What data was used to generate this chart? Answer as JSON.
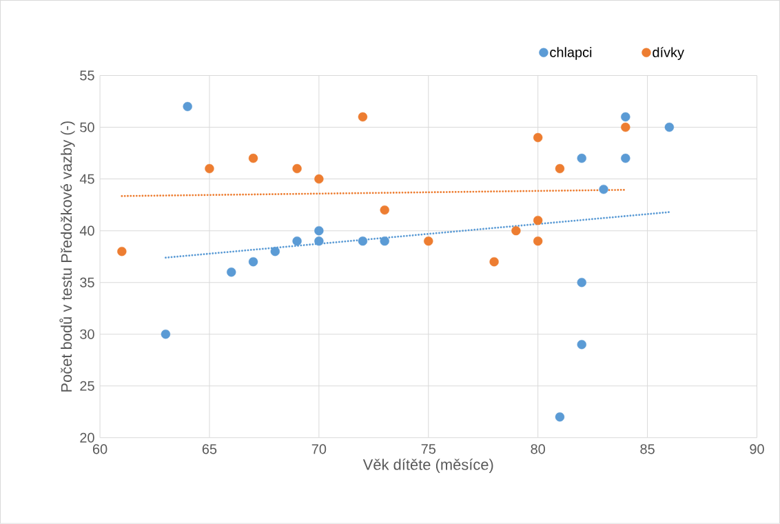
{
  "chart_data": {
    "type": "scatter",
    "xlabel": "Věk dítěte (měsíce)",
    "ylabel": "Počet bodů v testu Předožkové vazby (-)",
    "xlim": [
      60,
      90
    ],
    "xticks": [
      60,
      65,
      70,
      75,
      80,
      85,
      90
    ],
    "ylim": [
      20,
      55
    ],
    "yticks": [
      20,
      25,
      30,
      35,
      40,
      45,
      50,
      55
    ],
    "grid": true,
    "legend": "top right",
    "marker": "circle",
    "series": [
      {
        "name": "chlapci",
        "color": "#5b9bd5",
        "x": [
          64,
          63,
          66,
          67,
          68,
          69,
          70,
          70,
          72,
          73,
          81,
          82,
          82,
          82,
          83,
          84,
          84,
          86
        ],
        "values": [
          52,
          30,
          36,
          37,
          38,
          39,
          40,
          39,
          39,
          39,
          22,
          29,
          35,
          47,
          44,
          51,
          47,
          50
        ]
      },
      {
        "name": "dívky",
        "color": "#ed7d31",
        "x": [
          61,
          65,
          67,
          69,
          70,
          72,
          73,
          75,
          78,
          79,
          80,
          80,
          80,
          81,
          84
        ],
        "values": [
          38,
          46,
          47,
          46,
          45,
          51,
          42,
          39,
          37,
          40,
          49,
          41,
          39,
          46,
          50
        ]
      },
      {
        "type": "line",
        "marker": "none",
        "line_style": "dotted",
        "color": "#5b9bd5",
        "x": [
          63,
          86
        ],
        "values": [
          37.4,
          41.8
        ]
      },
      {
        "type": "line",
        "marker": "none",
        "line_style": "dotted",
        "color": "#ed7d31",
        "x": [
          61,
          84
        ],
        "values": [
          43.35,
          43.95
        ]
      }
    ]
  }
}
